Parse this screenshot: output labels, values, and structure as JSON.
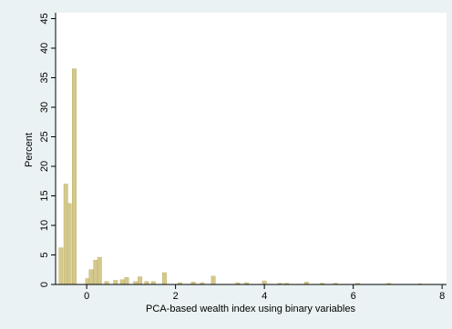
{
  "chart_data": {
    "type": "bar",
    "title": "",
    "xlabel": "PCA-based wealth index using binary variables",
    "ylabel": "Percent",
    "xlim": [
      -0.7,
      8.1
    ],
    "ylim": [
      0,
      46
    ],
    "x_ticks": [
      0,
      2,
      4,
      6,
      8
    ],
    "y_ticks": [
      0,
      5,
      10,
      15,
      20,
      25,
      30,
      35,
      40,
      45
    ],
    "grid": false,
    "colors": {
      "bar_fill": "#d4c98c",
      "bar_stroke": "#c2b26a",
      "outer_background": "#eaf2f3",
      "plot_background": "#ffffff",
      "axis": "#000000"
    },
    "bin_width": 0.09,
    "bars": [
      {
        "x": -0.58,
        "y": 6.2
      },
      {
        "x": -0.47,
        "y": 17.0
      },
      {
        "x": -0.39,
        "y": 13.7
      },
      {
        "x": -0.28,
        "y": 36.5
      },
      {
        "x": 0.02,
        "y": 1.0
      },
      {
        "x": 0.1,
        "y": 2.5
      },
      {
        "x": 0.2,
        "y": 4.1
      },
      {
        "x": 0.29,
        "y": 4.6
      },
      {
        "x": 0.45,
        "y": 0.5
      },
      {
        "x": 0.65,
        "y": 0.7
      },
      {
        "x": 0.8,
        "y": 0.8
      },
      {
        "x": 0.9,
        "y": 1.2
      },
      {
        "x": 1.1,
        "y": 0.5
      },
      {
        "x": 1.2,
        "y": 1.3
      },
      {
        "x": 1.35,
        "y": 0.5
      },
      {
        "x": 1.5,
        "y": 0.5
      },
      {
        "x": 1.75,
        "y": 2.0
      },
      {
        "x": 2.1,
        "y": 0.3
      },
      {
        "x": 2.4,
        "y": 0.4
      },
      {
        "x": 2.6,
        "y": 0.3
      },
      {
        "x": 2.85,
        "y": 1.4
      },
      {
        "x": 3.4,
        "y": 0.3
      },
      {
        "x": 3.6,
        "y": 0.3
      },
      {
        "x": 4.0,
        "y": 0.6
      },
      {
        "x": 4.35,
        "y": 0.2
      },
      {
        "x": 4.5,
        "y": 0.2
      },
      {
        "x": 4.95,
        "y": 0.4
      },
      {
        "x": 5.3,
        "y": 0.2
      },
      {
        "x": 5.6,
        "y": 0.2
      },
      {
        "x": 6.1,
        "y": 0.2
      },
      {
        "x": 6.8,
        "y": 0.2
      },
      {
        "x": 7.5,
        "y": 0.1
      }
    ]
  }
}
